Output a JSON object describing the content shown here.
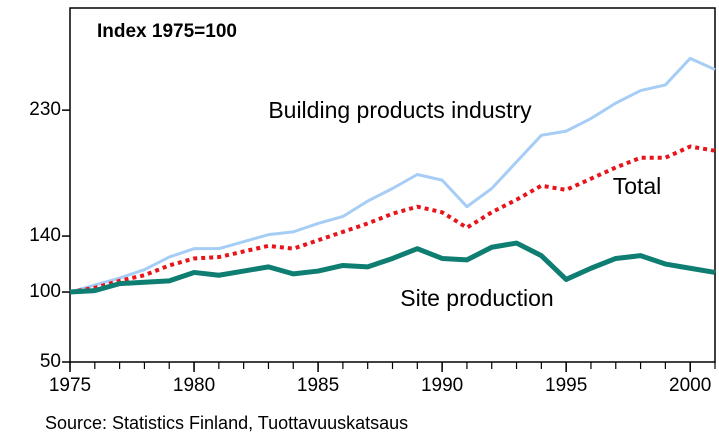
{
  "chart_data": {
    "type": "line",
    "subtitle": "Index 1975=100",
    "source": "Source: Statistics Finland, Tuottavuuskatsaus",
    "x": [
      1975,
      1976,
      1977,
      1978,
      1979,
      1980,
      1981,
      1982,
      1983,
      1984,
      1985,
      1986,
      1987,
      1988,
      1989,
      1990,
      1991,
      1992,
      1993,
      1994,
      1995,
      1996,
      1997,
      1998,
      1999,
      2000,
      2001
    ],
    "series": [
      {
        "name": "Building products industry",
        "color": "#a6cdf5",
        "style": "solid",
        "values": [
          100,
          105,
          110,
          116,
          125,
          131,
          131,
          136,
          141,
          143,
          149,
          154,
          165,
          174,
          184,
          180,
          161,
          174,
          193,
          212,
          215,
          224,
          235,
          244,
          248,
          267,
          259
        ]
      },
      {
        "name": "Total",
        "color": "#e8141b",
        "style": "dotted",
        "values": [
          100,
          103,
          108,
          112,
          119,
          124,
          125,
          129,
          133,
          131,
          137,
          143,
          149,
          156,
          161,
          157,
          146,
          157,
          166,
          176,
          173,
          181,
          189,
          196,
          196,
          204,
          201
        ]
      },
      {
        "name": "Site production",
        "color": "#0e7d72",
        "style": "solid",
        "values": [
          100,
          101,
          106,
          107,
          108,
          114,
          112,
          115,
          118,
          113,
          115,
          119,
          118,
          124,
          131,
          124,
          123,
          132,
          135,
          126,
          109,
          117,
          124,
          126,
          120,
          117,
          114
        ]
      }
    ],
    "xlim": [
      1975,
      2001
    ],
    "xticks": [
      1975,
      1980,
      1985,
      1990,
      1995,
      2000
    ],
    "ylim": [
      50,
      303
    ],
    "yticks": [
      50,
      100,
      140,
      230
    ]
  }
}
